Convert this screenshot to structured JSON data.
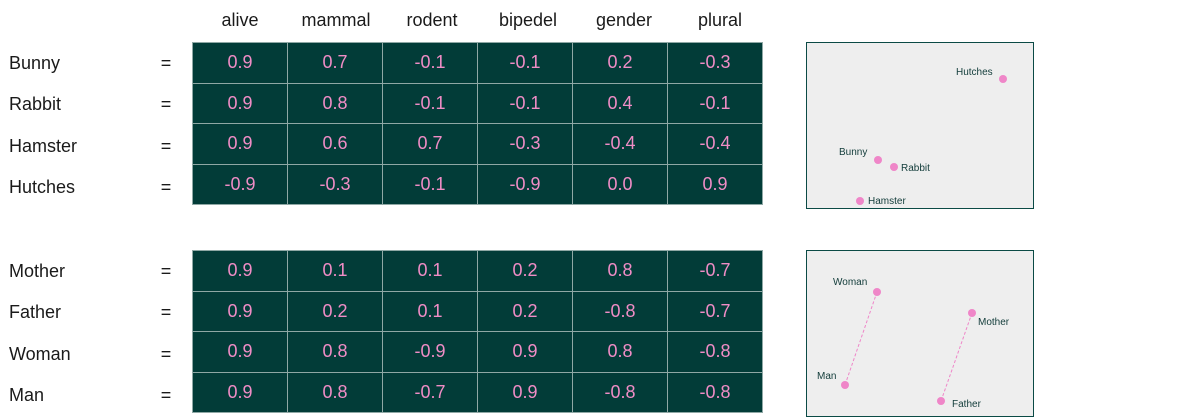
{
  "features": [
    "alive",
    "mammal",
    "rodent",
    "bipedel",
    "gender",
    "plural"
  ],
  "equals_sign": "=",
  "tables": [
    {
      "rows": [
        {
          "word": "Bunny",
          "values": [
            "0.9",
            "0.7",
            "-0.1",
            "-0.1",
            "0.2",
            "-0.3"
          ]
        },
        {
          "word": "Rabbit",
          "values": [
            "0.9",
            "0.8",
            "-0.1",
            "-0.1",
            "0.4",
            "-0.1"
          ]
        },
        {
          "word": "Hamster",
          "values": [
            "0.9",
            "0.6",
            "0.7",
            "-0.3",
            "-0.4",
            "-0.4"
          ]
        },
        {
          "word": "Hutches",
          "values": [
            "-0.9",
            "-0.3",
            "-0.1",
            "-0.9",
            "0.0",
            "0.9"
          ]
        }
      ]
    },
    {
      "rows": [
        {
          "word": "Mother",
          "values": [
            "0.9",
            "0.1",
            "0.1",
            "0.2",
            "0.8",
            "-0.7"
          ]
        },
        {
          "word": "Father",
          "values": [
            "0.9",
            "0.2",
            "0.1",
            "0.2",
            "-0.8",
            "-0.7"
          ]
        },
        {
          "word": "Woman",
          "values": [
            "0.9",
            "0.8",
            "-0.9",
            "0.9",
            "0.8",
            "-0.8"
          ]
        },
        {
          "word": "Man",
          "values": [
            "0.9",
            "0.8",
            "-0.7",
            "0.9",
            "-0.8",
            "-0.8"
          ]
        }
      ]
    }
  ],
  "plots": [
    {
      "points": [
        {
          "label": "Hutches"
        },
        {
          "label": "Bunny"
        },
        {
          "label": "Rabbit"
        },
        {
          "label": "Hamster"
        }
      ],
      "links": []
    },
    {
      "points": [
        {
          "label": "Woman"
        },
        {
          "label": "Man"
        },
        {
          "label": "Mother"
        },
        {
          "label": "Father"
        }
      ],
      "links": [
        [
          "Woman",
          "Man"
        ],
        [
          "Mother",
          "Father"
        ]
      ]
    }
  ],
  "colors": {
    "cell_bg": "#023c38",
    "cell_text": "#f08dc6",
    "point": "#ef86c8",
    "plot_bg": "#eeeeee"
  }
}
